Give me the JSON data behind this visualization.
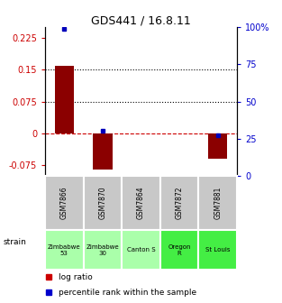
{
  "title": "GDS441 / 16.8.11",
  "samples": [
    "GSM7866",
    "GSM7870",
    "GSM7864",
    "GSM7872",
    "GSM7881"
  ],
  "log_ratios": [
    0.16,
    -0.085,
    0.0,
    0.0,
    -0.06
  ],
  "percentile_ranks": [
    99,
    30,
    0,
    0,
    27
  ],
  "strains": [
    "Zimbabwe\n53",
    "Zimbabwe\n30",
    "Canton S",
    "Oregon\nR",
    "St Louis"
  ],
  "strain_colors": [
    "#aaffaa",
    "#aaffaa",
    "#aaffaa",
    "#44ee44",
    "#44ee44"
  ],
  "gsm_bg_color": "#c8c8c8",
  "ylim_left": [
    -0.1,
    0.25
  ],
  "ylim_right": [
    0,
    100
  ],
  "yticks_left": [
    -0.075,
    0,
    0.075,
    0.15,
    0.225
  ],
  "yticks_right": [
    0,
    25,
    50,
    75,
    100
  ],
  "hlines": [
    0.075,
    0.15
  ],
  "bar_color": "#8b0000",
  "dot_color": "#0000bb",
  "bar_width": 0.5,
  "legend_bar_color": "#cc0000",
  "legend_dot_color": "#0000cc",
  "title_fontsize": 9,
  "tick_fontsize": 7,
  "label_fontsize": 6.5
}
